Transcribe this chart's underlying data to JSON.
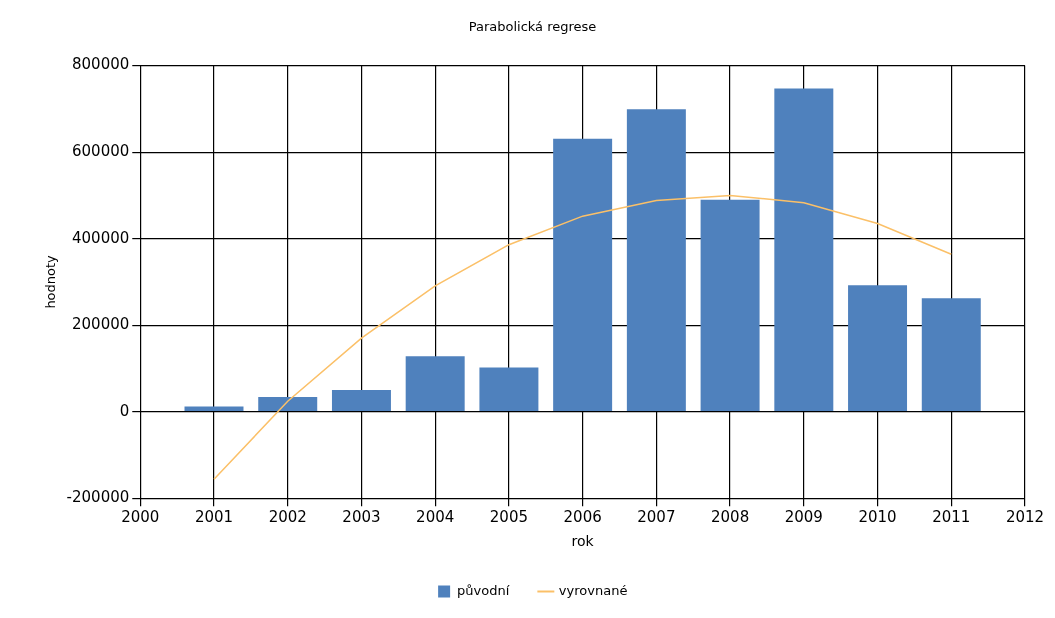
{
  "chart_data": {
    "type": "bar",
    "title": "Parabolická regrese",
    "xlabel": "rok",
    "ylabel": "hodnoty",
    "x": [
      2001,
      2002,
      2003,
      2004,
      2005,
      2006,
      2007,
      2008,
      2009,
      2010,
      2011
    ],
    "series": [
      {
        "name": "původní",
        "color": "#4f81bd",
        "values": [
          12000,
          34000,
          50000,
          128000,
          102000,
          631000,
          699000,
          490000,
          747000,
          292000,
          262000
        ]
      },
      {
        "name": "vyrovnané",
        "type": "line",
        "color": "#fbc068",
        "values": [
          -156000,
          24000,
          170000,
          291000,
          386000,
          452000,
          488000,
          500000,
          483000,
          435000,
          364000
        ]
      }
    ],
    "xlim": [
      2000,
      2012
    ],
    "xticks": [
      2000,
      2001,
      2002,
      2003,
      2004,
      2005,
      2006,
      2007,
      2008,
      2009,
      2010,
      2011,
      2012
    ],
    "ylim": [
      -200000,
      800000
    ],
    "yticks": [
      -200000,
      0,
      200000,
      400000,
      600000,
      800000
    ],
    "grid": true,
    "legend": "bottom",
    "marker": "none"
  }
}
